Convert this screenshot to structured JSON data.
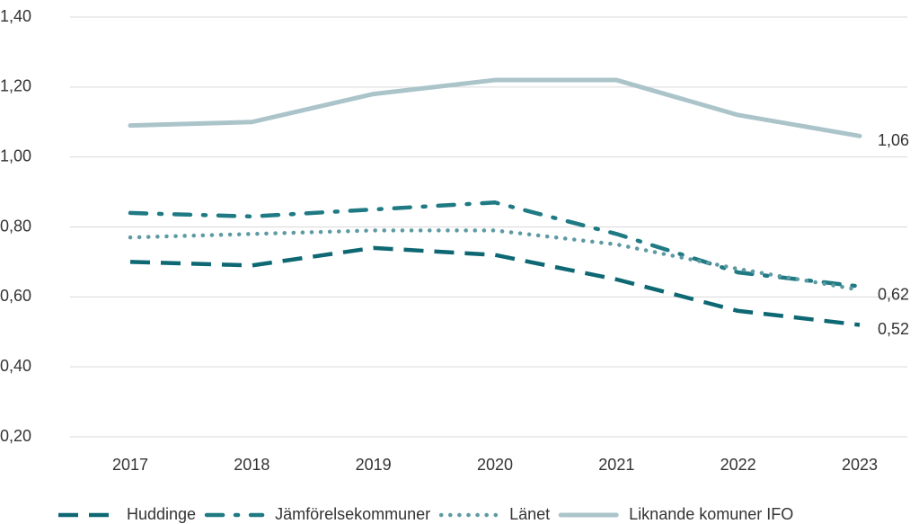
{
  "chart_data": {
    "type": "line",
    "categories": [
      "2017",
      "2018",
      "2019",
      "2020",
      "2021",
      "2022",
      "2023"
    ],
    "series": [
      {
        "name": "Huddinge",
        "color": "#0e6873",
        "dash": "dashed",
        "values": [
          0.7,
          0.69,
          0.74,
          0.72,
          0.65,
          0.56,
          0.52
        ],
        "value_labels": [
          null,
          null,
          null,
          null,
          null,
          null,
          "0,52"
        ]
      },
      {
        "name": "Jämförelsekommuner",
        "color": "#1f7a83",
        "dash": "dashdot",
        "values": [
          0.84,
          0.83,
          0.85,
          0.87,
          0.78,
          0.67,
          0.63
        ]
      },
      {
        "name": "Länet",
        "color": "#5e9aa3",
        "dash": "dotted",
        "values": [
          0.77,
          0.78,
          0.79,
          0.79,
          0.75,
          0.68,
          0.62
        ],
        "value_labels": [
          null,
          null,
          null,
          null,
          null,
          null,
          "0,62"
        ]
      },
      {
        "name": "Liknande komuner IFO",
        "color": "#aac4ca",
        "dash": "solid",
        "values": [
          1.09,
          1.1,
          1.18,
          1.22,
          1.22,
          1.12,
          1.06
        ],
        "value_labels": [
          null,
          null,
          null,
          null,
          null,
          null,
          "1,06"
        ]
      }
    ],
    "ylim": [
      0.2,
      1.4
    ],
    "yticks": [
      {
        "value": 0.2,
        "label": "0,20"
      },
      {
        "value": 0.4,
        "label": "0,40"
      },
      {
        "value": 0.6,
        "label": "0,60"
      },
      {
        "value": 0.8,
        "label": "0,80"
      },
      {
        "value": 1.0,
        "label": "1,00"
      },
      {
        "value": 1.2,
        "label": "1,20"
      },
      {
        "value": 1.4,
        "label": "1,40"
      }
    ],
    "grid": true,
    "legend": "bottom"
  }
}
